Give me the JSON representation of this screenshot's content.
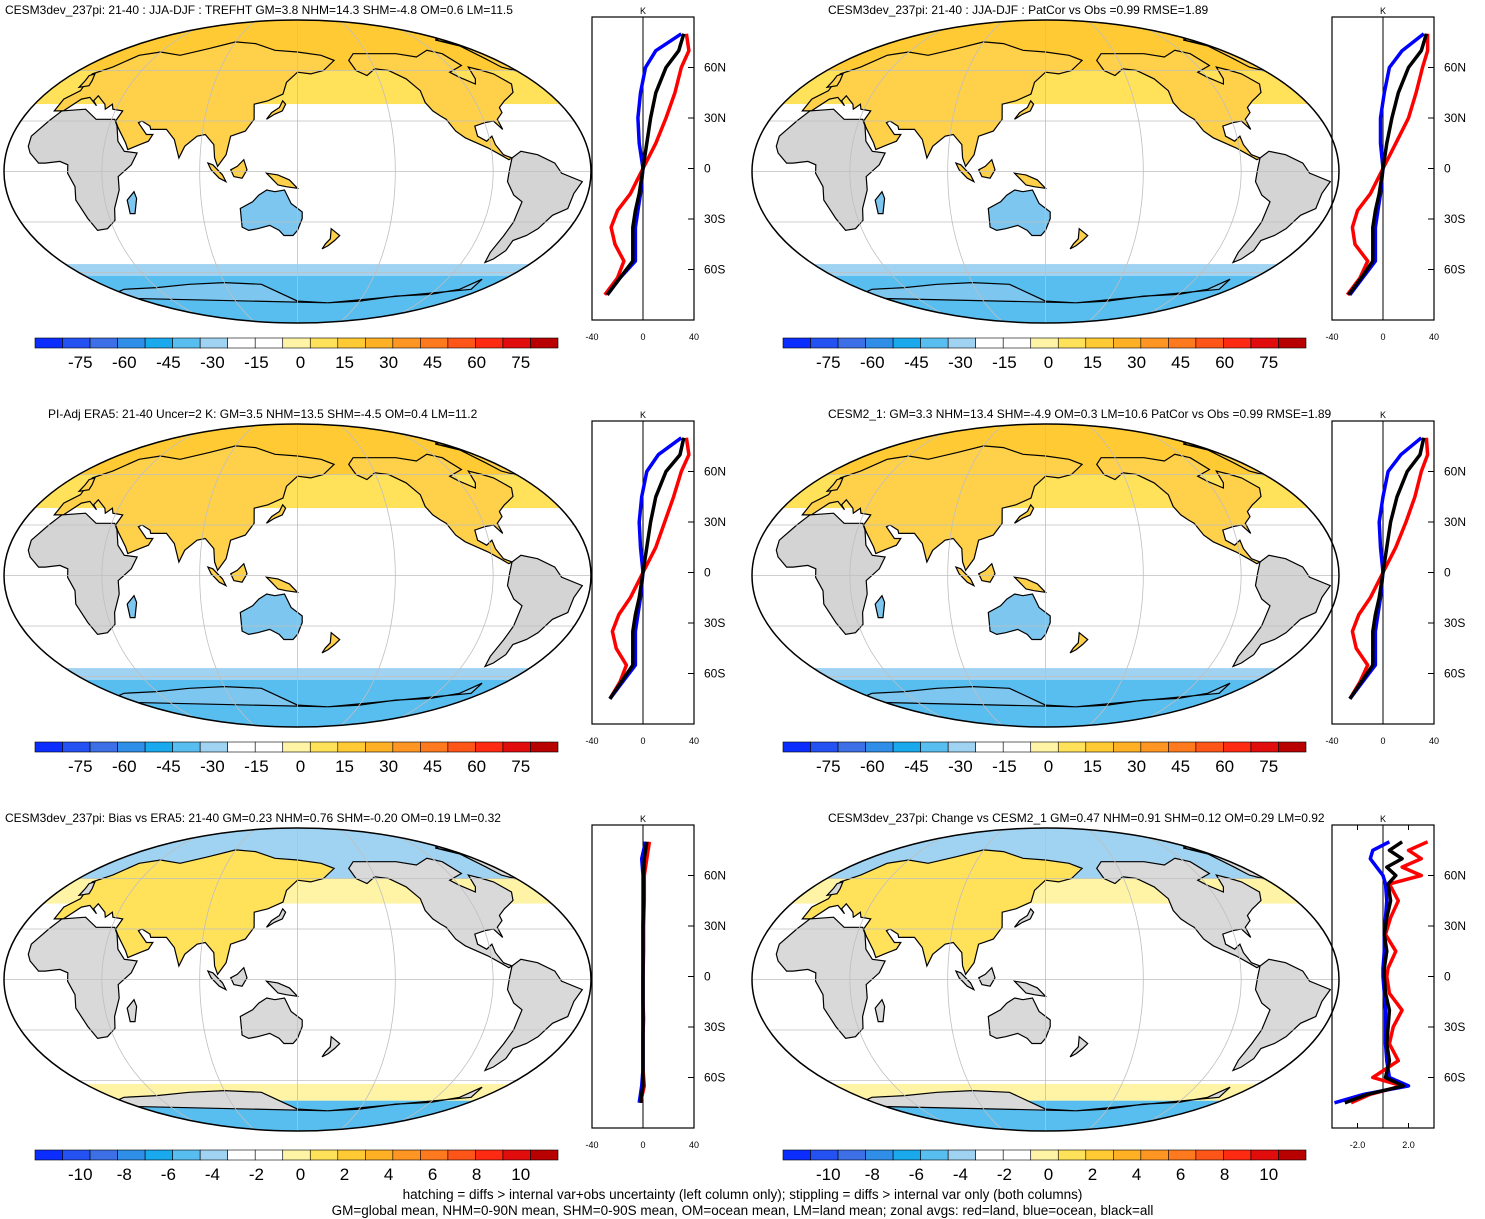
{
  "panels": [
    {
      "title": "CESM3dev_237pi: 21-40 : JJA-DJF : TREFHT GM=3.8 NHM=14.3 SHM=-4.8 OM=0.6 LM=11.5",
      "colorbar_labels": [
        "-75",
        "-60",
        "-45",
        "-30",
        "-15",
        "0",
        "15",
        "30",
        "45",
        "60",
        "75"
      ],
      "colorbar_kind": "large",
      "zonal_xticks": [
        "-40",
        "0",
        "40"
      ],
      "zonal_xrange": [
        -40,
        40
      ],
      "zonal_unit": "K",
      "hatched": true
    },
    {
      "title": "CESM3dev_237pi: 21-40 : JJA-DJF : PatCor vs Obs =0.99 RMSE=1.89",
      "colorbar_labels": [
        "-75",
        "-60",
        "-45",
        "-30",
        "-15",
        "0",
        "15",
        "30",
        "45",
        "60",
        "75"
      ],
      "colorbar_kind": "large",
      "zonal_xticks": [
        "-40",
        "0",
        "40"
      ],
      "zonal_xrange": [
        -40,
        40
      ],
      "zonal_unit": "K",
      "hatched": false
    },
    {
      "title": "PI-Adj ERA5: 21-40 Uncer=2 K: GM=3.5 NHM=13.5 SHM=-4.5 OM=0.4 LM=11.2",
      "colorbar_labels": [
        "-75",
        "-60",
        "-45",
        "-30",
        "-15",
        "0",
        "15",
        "30",
        "45",
        "60",
        "75"
      ],
      "colorbar_kind": "large",
      "zonal_xticks": [
        "-40",
        "0",
        "40"
      ],
      "zonal_xrange": [
        -40,
        40
      ],
      "zonal_unit": "K",
      "hatched": true
    },
    {
      "title": "CESM2_1: GM=3.3 NHM=13.4 SHM=-4.9 OM=0.3 LM=10.6 PatCor vs Obs =0.99 RMSE=1.89",
      "colorbar_labels": [
        "-75",
        "-60",
        "-45",
        "-30",
        "-15",
        "0",
        "15",
        "30",
        "45",
        "60",
        "75"
      ],
      "colorbar_kind": "large",
      "zonal_xticks": [
        "-40",
        "0",
        "40"
      ],
      "zonal_xrange": [
        -40,
        40
      ],
      "zonal_unit": "K",
      "hatched": false
    },
    {
      "title": "CESM3dev_237pi: Bias vs ERA5: 21-40 GM=0.23 NHM=0.76 SHM=-0.20 OM=0.19 LM=0.32",
      "colorbar_labels": [
        "-10",
        "-8",
        "-6",
        "-4",
        "-2",
        "0",
        "2",
        "4",
        "6",
        "8",
        "10"
      ],
      "colorbar_kind": "small",
      "zonal_xticks": [
        "-40",
        "0",
        "40"
      ],
      "zonal_xrange": [
        -40,
        40
      ],
      "zonal_unit": "K",
      "hatched": true
    },
    {
      "title": "CESM3dev_237pi: Change vs CESM2_1 GM=0.47 NHM=0.91 SHM=0.12 OM=0.29 LM=0.92",
      "colorbar_labels": [
        "-10",
        "-8",
        "-6",
        "-4",
        "-2",
        "0",
        "2",
        "4",
        "6",
        "8",
        "10"
      ],
      "colorbar_kind": "small",
      "zonal_xticks": [
        "-2.0",
        "2.0"
      ],
      "zonal_xrange": [
        -4,
        4
      ],
      "zonal_unit": "K",
      "hatched": false
    }
  ],
  "zonal_lat_labels": [
    "60N",
    "30N",
    "0",
    "30S",
    "60S"
  ],
  "colorbar_colors": [
    "#0b2dff",
    "#2452f2",
    "#3d6fe6",
    "#2f8ee8",
    "#1aa9ec",
    "#58bdef",
    "#9fd3f1",
    "#ffffff",
    "#ffffff",
    "#fff4a6",
    "#ffe15a",
    "#ffca33",
    "#ffb024",
    "#ff9624",
    "#ff7a1e",
    "#ff5519",
    "#ff2a12",
    "#e10c0c",
    "#b80000"
  ],
  "chart_data": [
    {
      "type": "line",
      "title": "CESM3dev_237pi: 21-40 : JJA-DJF : TREFHT GM=3.8 NHM=14.3 SHM=-4.8 OM=0.6 LM=11.5",
      "xlabel": "K",
      "xlim": [
        -40,
        40
      ],
      "y_tick_labels": [
        "60N",
        "30N",
        "0",
        "30S",
        "60S"
      ],
      "series": [
        {
          "name": "land",
          "color": "#ff0000",
          "lat": [
            80,
            70,
            60,
            45,
            30,
            15,
            0,
            -15,
            -25,
            -35,
            -45,
            -55,
            -65,
            -75
          ],
          "values": [
            34,
            36,
            30,
            25,
            18,
            10,
            0,
            -10,
            -20,
            -25,
            -22,
            -15,
            -20,
            -30
          ]
        },
        {
          "name": "ocean",
          "color": "#0000ff",
          "lat": [
            80,
            70,
            60,
            45,
            30,
            15,
            0,
            -15,
            -25,
            -35,
            -45,
            -55,
            -65,
            -75
          ],
          "values": [
            30,
            10,
            2,
            -2,
            -4,
            -3,
            0,
            -2,
            -4,
            -6,
            -6,
            -6,
            -18,
            -28
          ]
        },
        {
          "name": "all",
          "color": "#000000",
          "lat": [
            80,
            70,
            60,
            45,
            30,
            15,
            0,
            -15,
            -25,
            -35,
            -45,
            -55,
            -65,
            -75
          ],
          "values": [
            32,
            28,
            18,
            10,
            6,
            3,
            0,
            -3,
            -6,
            -8,
            -8,
            -8,
            -18,
            -28
          ]
        }
      ]
    },
    {
      "type": "line",
      "title": "CESM3dev_237pi: 21-40 : JJA-DJF : PatCor vs Obs =0.99 RMSE=1.89",
      "xlabel": "K",
      "xlim": [
        -40,
        40
      ],
      "y_tick_labels": [
        "60N",
        "30N",
        "0",
        "30S",
        "60S"
      ],
      "series": [
        {
          "name": "land",
          "color": "#ff0000",
          "lat": [
            80,
            70,
            60,
            45,
            30,
            15,
            0,
            -15,
            -25,
            -35,
            -45,
            -55,
            -65,
            -75
          ],
          "values": [
            35,
            35,
            31,
            26,
            20,
            10,
            0,
            -10,
            -20,
            -24,
            -22,
            -12,
            -18,
            -28
          ]
        },
        {
          "name": "ocean",
          "color": "#0000ff",
          "lat": [
            80,
            70,
            60,
            45,
            30,
            15,
            0,
            -15,
            -25,
            -35,
            -45,
            -55,
            -65,
            -75
          ],
          "values": [
            32,
            15,
            5,
            1,
            -2,
            -2,
            0,
            -2,
            -4,
            -6,
            -6,
            -6,
            -16,
            -26
          ]
        },
        {
          "name": "all",
          "color": "#000000",
          "lat": [
            80,
            70,
            60,
            45,
            30,
            15,
            0,
            -15,
            -25,
            -35,
            -45,
            -55,
            -65,
            -75
          ],
          "values": [
            34,
            30,
            20,
            12,
            7,
            3,
            0,
            -3,
            -6,
            -8,
            -8,
            -8,
            -17,
            -27
          ]
        }
      ]
    },
    {
      "type": "line",
      "title": "PI-Adj ERA5: 21-40 Uncer=2 K: GM=3.5 NHM=13.5 SHM=-4.5 OM=0.4 LM=11.2",
      "xlabel": "K",
      "xlim": [
        -40,
        40
      ],
      "y_tick_labels": [
        "60N",
        "30N",
        "0",
        "30S",
        "60S"
      ],
      "series": [
        {
          "name": "land",
          "color": "#ff0000",
          "lat": [
            80,
            70,
            60,
            45,
            30,
            15,
            0,
            -15,
            -25,
            -35,
            -45,
            -55,
            -65,
            -75
          ],
          "values": [
            34,
            36,
            30,
            24,
            17,
            10,
            0,
            -10,
            -19,
            -24,
            -21,
            -13,
            -18,
            -26
          ]
        },
        {
          "name": "ocean",
          "color": "#0000ff",
          "lat": [
            80,
            70,
            60,
            45,
            30,
            15,
            0,
            -15,
            -25,
            -35,
            -45,
            -55,
            -65,
            -75
          ],
          "values": [
            30,
            12,
            3,
            -1,
            -3,
            -2,
            0,
            -2,
            -4,
            -6,
            -6,
            -6,
            -16,
            -26
          ]
        },
        {
          "name": "all",
          "color": "#000000",
          "lat": [
            80,
            70,
            60,
            45,
            30,
            15,
            0,
            -15,
            -25,
            -35,
            -45,
            -55,
            -65,
            -75
          ],
          "values": [
            32,
            29,
            18,
            10,
            6,
            3,
            0,
            -3,
            -6,
            -8,
            -8,
            -8,
            -17,
            -26
          ]
        }
      ]
    },
    {
      "type": "line",
      "title": "CESM2_1: GM=3.3 NHM=13.4 SHM=-4.9 OM=0.3 LM=10.6 PatCor vs Obs =0.99 RMSE=1.89",
      "xlabel": "K",
      "xlim": [
        -40,
        40
      ],
      "y_tick_labels": [
        "60N",
        "30N",
        "0",
        "30S",
        "60S"
      ],
      "series": [
        {
          "name": "land",
          "color": "#ff0000",
          "lat": [
            80,
            70,
            60,
            45,
            30,
            15,
            0,
            -15,
            -25,
            -35,
            -45,
            -55,
            -65,
            -75
          ],
          "values": [
            34,
            35,
            30,
            25,
            18,
            10,
            0,
            -10,
            -19,
            -24,
            -21,
            -12,
            -18,
            -26
          ]
        },
        {
          "name": "ocean",
          "color": "#0000ff",
          "lat": [
            80,
            70,
            60,
            45,
            30,
            15,
            0,
            -15,
            -25,
            -35,
            -45,
            -55,
            -65,
            -75
          ],
          "values": [
            30,
            14,
            4,
            0,
            -3,
            -2,
            0,
            -2,
            -4,
            -6,
            -6,
            -6,
            -16,
            -26
          ]
        },
        {
          "name": "all",
          "color": "#000000",
          "lat": [
            80,
            70,
            60,
            45,
            30,
            15,
            0,
            -15,
            -25,
            -35,
            -45,
            -55,
            -65,
            -75
          ],
          "values": [
            32,
            29,
            19,
            11,
            6,
            3,
            0,
            -3,
            -6,
            -8,
            -8,
            -8,
            -17,
            -26
          ]
        }
      ]
    },
    {
      "type": "line",
      "title": "CESM3dev_237pi: Bias vs ERA5: 21-40 GM=0.23 NHM=0.76 SHM=-0.20 OM=0.19 LM=0.32",
      "xlabel": "K",
      "xlim": [
        -40,
        40
      ],
      "y_tick_labels": [
        "60N",
        "30N",
        "0",
        "30S",
        "60S"
      ],
      "series": [
        {
          "name": "land",
          "color": "#ff0000",
          "lat": [
            80,
            70,
            60,
            45,
            30,
            15,
            0,
            -15,
            -25,
            -35,
            -45,
            -55,
            -65,
            -75
          ],
          "values": [
            5,
            3,
            1,
            1,
            0.5,
            0.5,
            0,
            0,
            0.5,
            0,
            0,
            0,
            1,
            -2
          ]
        },
        {
          "name": "ocean",
          "color": "#0000ff",
          "lat": [
            80,
            70,
            60,
            45,
            30,
            15,
            0,
            -15,
            -25,
            -35,
            -45,
            -55,
            -65,
            -75
          ],
          "values": [
            2,
            -1,
            0,
            0,
            0,
            0,
            0,
            0,
            0,
            0,
            0,
            0,
            -1,
            -3
          ]
        },
        {
          "name": "all",
          "color": "#000000",
          "lat": [
            80,
            70,
            60,
            45,
            30,
            15,
            0,
            -15,
            -25,
            -35,
            -45,
            -55,
            -65,
            -75
          ],
          "values": [
            3,
            1,
            0.5,
            0.5,
            0,
            0,
            0,
            0,
            0,
            0,
            0,
            0,
            0,
            -2
          ]
        }
      ]
    },
    {
      "type": "line",
      "title": "CESM3dev_237pi: Change vs CESM2_1 GM=0.47 NHM=0.91 SHM=0.12 OM=0.29 LM=0.92",
      "xlabel": "K",
      "xlim": [
        -4,
        4
      ],
      "y_tick_labels": [
        "60N",
        "30N",
        "0",
        "30S",
        "60S"
      ],
      "series": [
        {
          "name": "land",
          "color": "#ff0000",
          "lat": [
            80,
            75,
            70,
            65,
            60,
            55,
            45,
            35,
            25,
            15,
            5,
            0,
            -10,
            -20,
            -30,
            -40,
            -50,
            -60,
            -65,
            -70,
            -75
          ],
          "values": [
            3.5,
            2.0,
            3.0,
            1.5,
            3.0,
            0.5,
            1.2,
            0.6,
            0.2,
            1.0,
            0.4,
            0.3,
            0.5,
            1.5,
            0.8,
            0.5,
            1.2,
            -0.8,
            1.5,
            -1.0,
            -2.5
          ]
        },
        {
          "name": "ocean",
          "color": "#0000ff",
          "lat": [
            80,
            75,
            70,
            65,
            60,
            55,
            45,
            35,
            25,
            15,
            5,
            0,
            -10,
            -20,
            -30,
            -40,
            -50,
            -60,
            -65,
            -70,
            -75
          ],
          "values": [
            0.5,
            -0.8,
            -1.0,
            -0.5,
            0.0,
            0.2,
            0.3,
            0.2,
            0.1,
            0.1,
            0.0,
            0.0,
            0.1,
            0.2,
            0.2,
            0.2,
            0.3,
            0.5,
            2.0,
            -1.5,
            -3.8
          ]
        },
        {
          "name": "all",
          "color": "#000000",
          "lat": [
            80,
            75,
            70,
            65,
            60,
            55,
            45,
            35,
            25,
            15,
            5,
            0,
            -10,
            -20,
            -30,
            -40,
            -50,
            -60,
            -65,
            -70,
            -75
          ],
          "values": [
            1.5,
            0.5,
            1.5,
            0.3,
            1.0,
            0.4,
            0.6,
            0.3,
            0.1,
            0.3,
            0.1,
            0.1,
            0.2,
            0.5,
            0.4,
            0.3,
            0.5,
            0.2,
            1.6,
            -1.2,
            -3.0
          ]
        }
      ]
    }
  ],
  "footer": {
    "line1": "hatching = diffs > internal var+obs uncertainty (left column only); stippling = diffs > internal var only (both columns)",
    "line2": "GM=global mean, NHM=0-90N mean, SHM=0-90S mean, OM=ocean mean, LM=land mean; zonal avgs: red=land, blue=ocean, black=all"
  }
}
